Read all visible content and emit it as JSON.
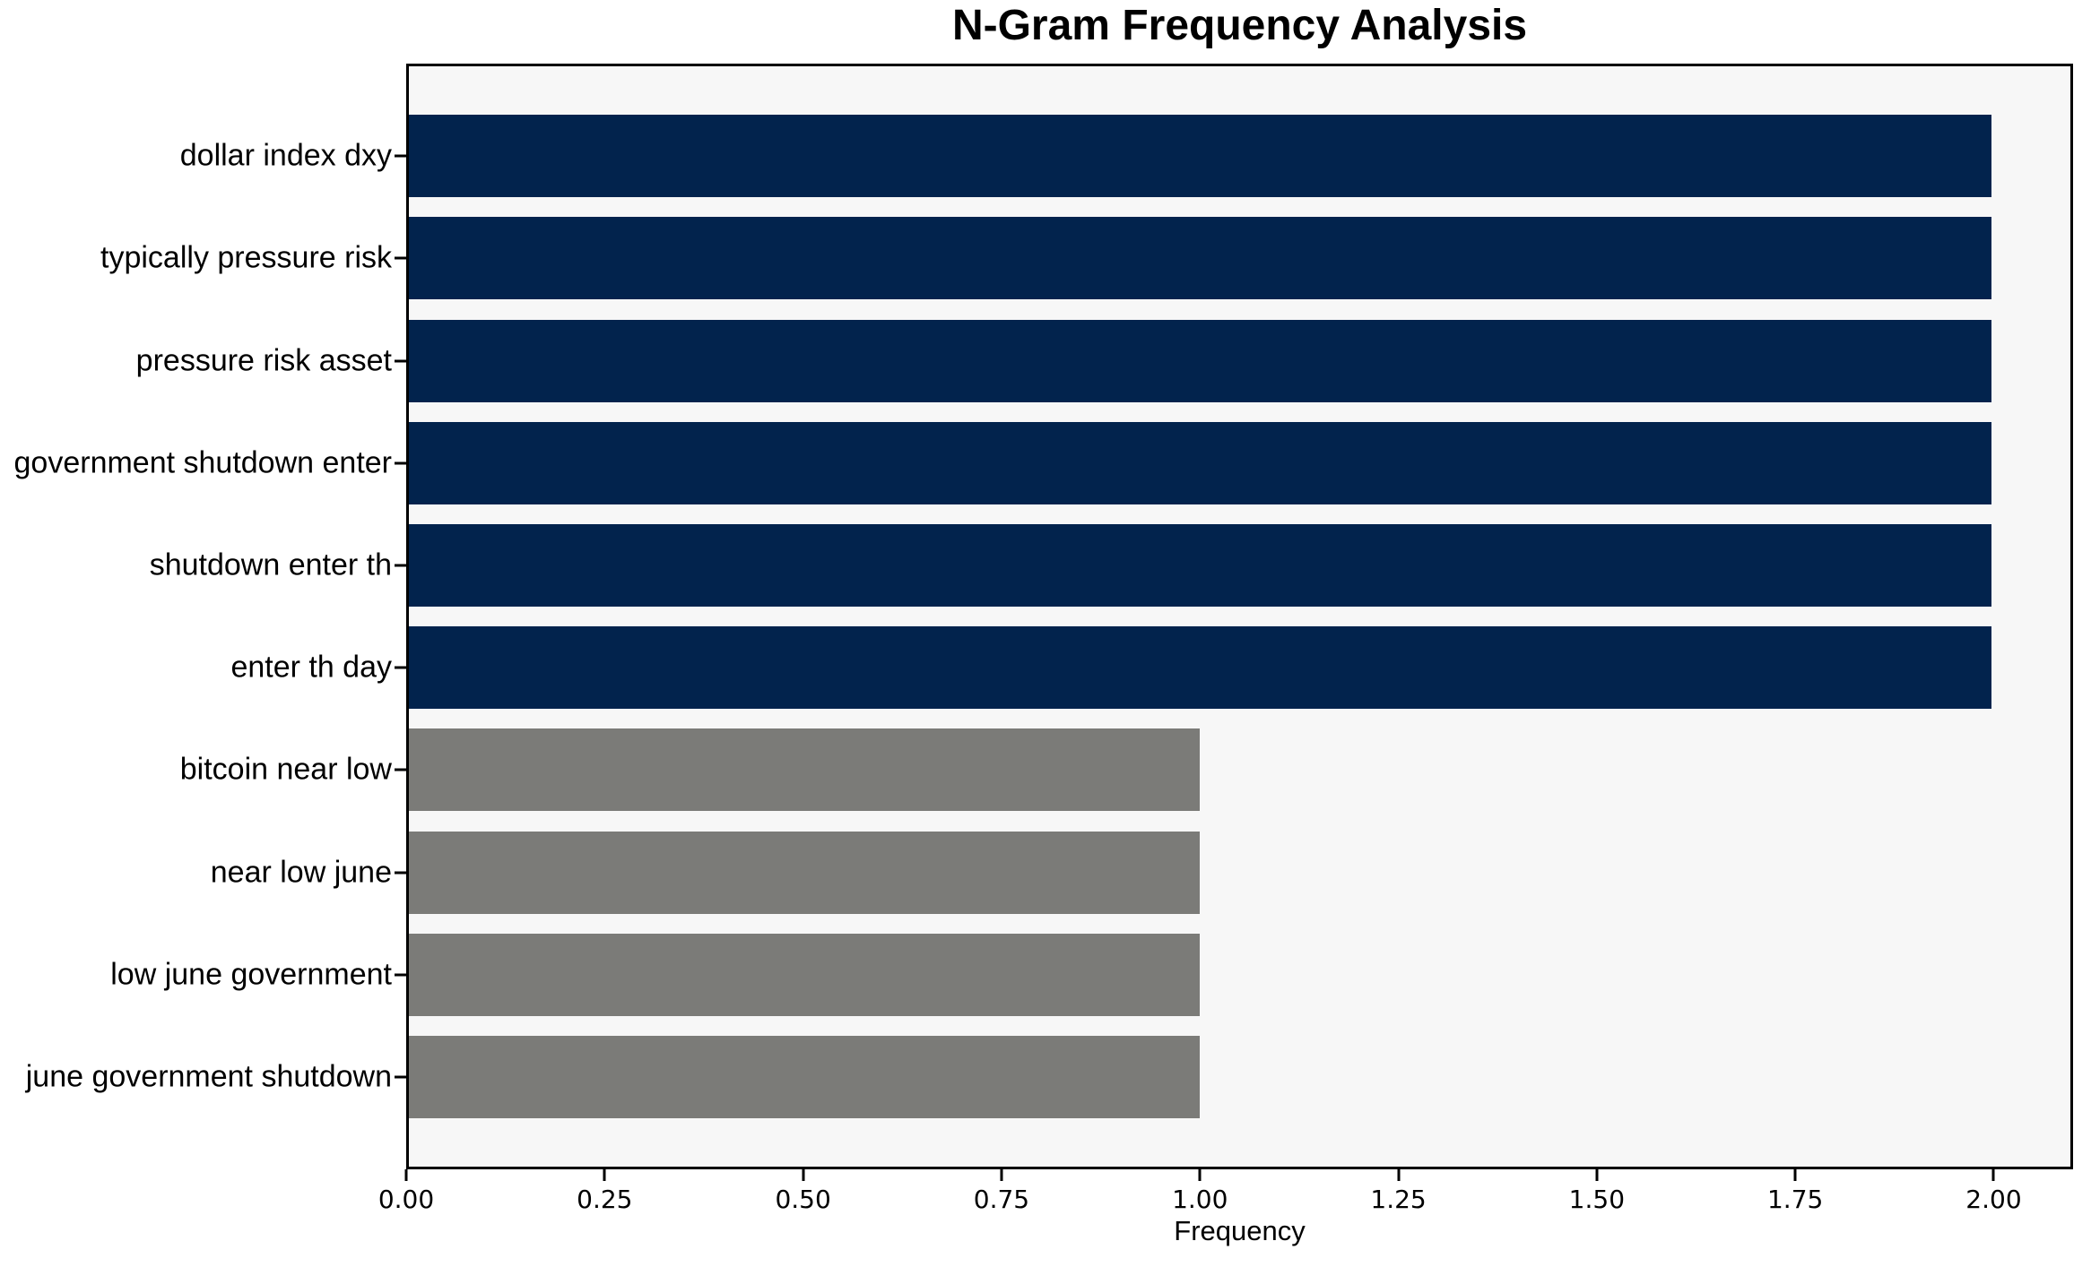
{
  "chart_data": {
    "type": "bar",
    "orientation": "horizontal",
    "title": "N-Gram Frequency Analysis",
    "xlabel": "Frequency",
    "categories": [
      "dollar index dxy",
      "typically pressure risk",
      "pressure risk asset",
      "government shutdown enter",
      "shutdown enter th",
      "enter th day",
      "bitcoin near low",
      "near low june",
      "low june government",
      "june government shutdown"
    ],
    "values": [
      2,
      2,
      2,
      2,
      2,
      2,
      1,
      1,
      1,
      1
    ],
    "bar_colors": [
      "#02234d",
      "#02234d",
      "#02234d",
      "#02234d",
      "#02234d",
      "#02234d",
      "#7b7b78",
      "#7b7b78",
      "#7b7b78",
      "#7b7b78"
    ],
    "xlim": [
      0,
      2.1
    ],
    "xticks": {
      "values": [
        0,
        0.25,
        0.5,
        0.75,
        1.0,
        1.25,
        1.5,
        1.75,
        2.0
      ],
      "labels": [
        "0.00",
        "0.25",
        "0.50",
        "0.75",
        "1.00",
        "1.25",
        "1.50",
        "1.75",
        "2.00"
      ]
    },
    "grid": "off",
    "legend": "none",
    "style": {
      "bar_color_high_freq": "#02234d",
      "bar_color_low_freq": "#7b7b78",
      "plot_background": "#f7f7f7",
      "figure_background": "#ffffff",
      "spine_color": "#000000",
      "text_color": "#000000"
    }
  }
}
